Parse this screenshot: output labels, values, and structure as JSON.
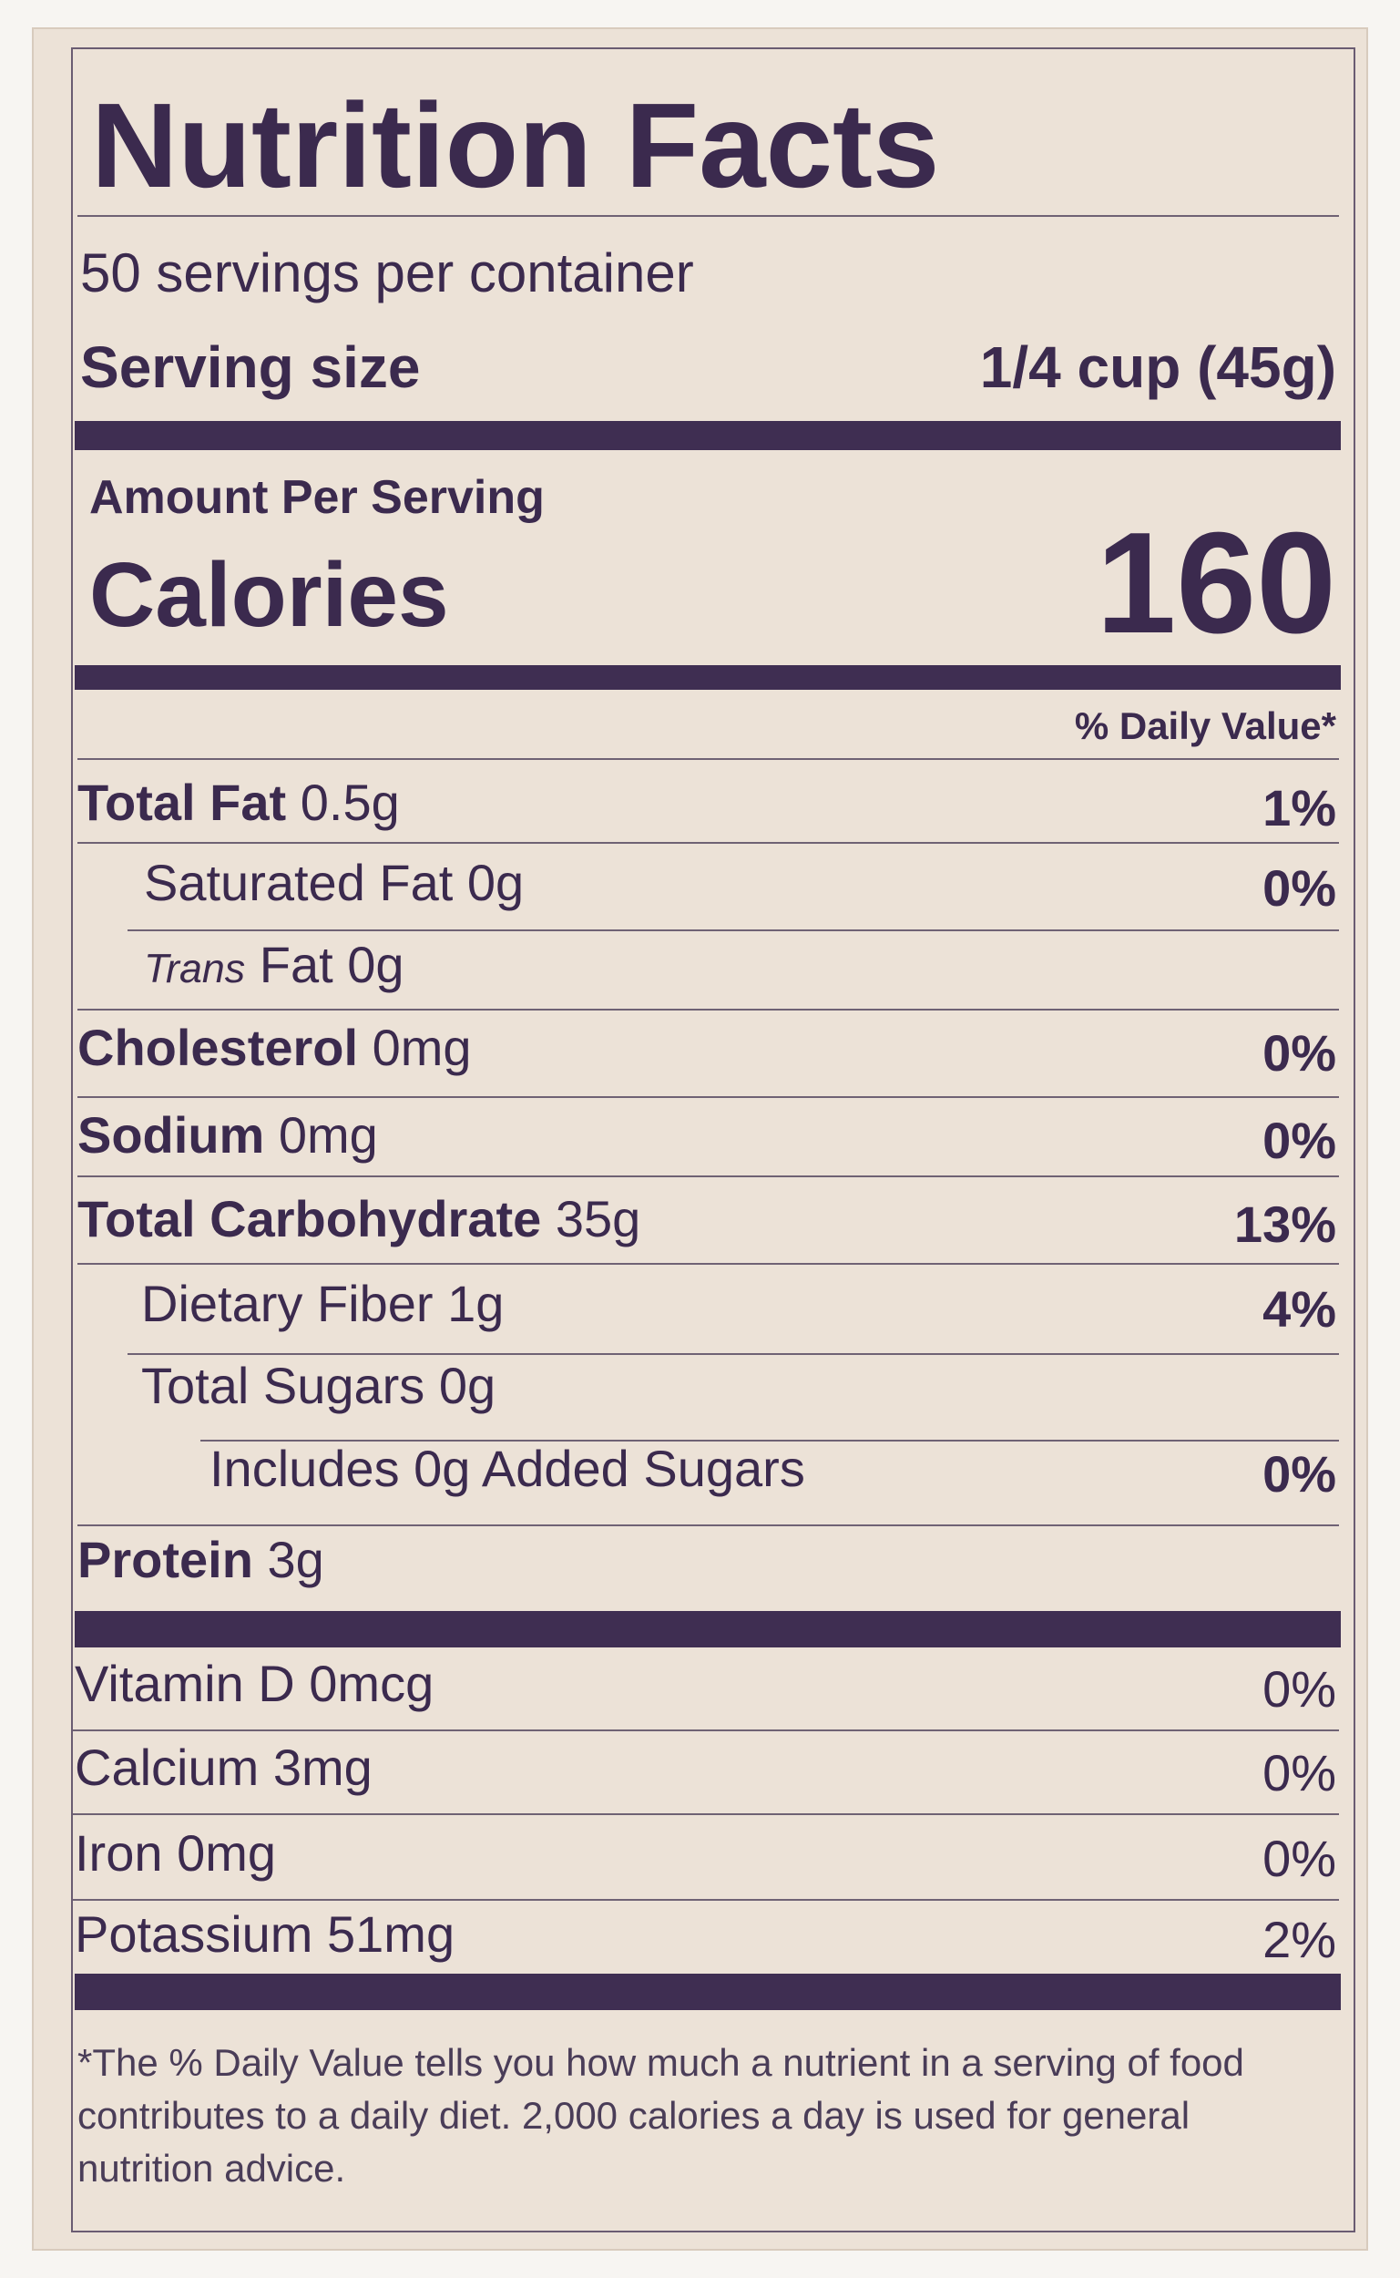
{
  "header": {
    "title": "Nutrition Facts",
    "servings": "50 servings per container",
    "serving_size_label": "Serving size",
    "serving_size_value": "1/4 cup (45g)"
  },
  "amount_per_serving": "Amount Per Serving",
  "calories_label": "Calories",
  "calories_value": 160,
  "daily_value_header": "% Daily Value*",
  "nutrients": [
    {
      "name": "Total Fat",
      "amount": "0.5g",
      "dv": "1%"
    },
    {
      "name": "Saturated Fat",
      "amount": "0g",
      "dv": "0%"
    },
    {
      "name": "Trans",
      "name_rest": "Fat",
      "amount": "0g"
    },
    {
      "name": "Cholesterol",
      "amount": "0mg",
      "dv": "0%"
    },
    {
      "name": "Sodium",
      "amount": "0mg",
      "dv": "0%"
    },
    {
      "name": "Total Carbohydrate",
      "amount": "35g",
      "dv": "13%"
    },
    {
      "name": "Dietary Fiber",
      "amount": "1g",
      "dv": "4%"
    },
    {
      "name": "Total Sugars",
      "amount": "0g"
    },
    {
      "name": "Includes 0g Added Sugars",
      "dv": "0%"
    },
    {
      "name": "Protein",
      "amount": "3g"
    }
  ],
  "vitamins": [
    {
      "name": "Vitamin D",
      "amount": "0mcg",
      "dv": "0%"
    },
    {
      "name": "Calcium",
      "amount": "3mg",
      "dv": "0%"
    },
    {
      "name": "Iron",
      "amount": "0mg",
      "dv": "0%"
    },
    {
      "name": "Potassium",
      "amount": "51mg",
      "dv": "2%"
    }
  ],
  "footnote": "*The % Daily Value tells you how much a nutrient in a serving of food contributes to a daily diet. 2,000 calories a day is used for general nutrition advice."
}
